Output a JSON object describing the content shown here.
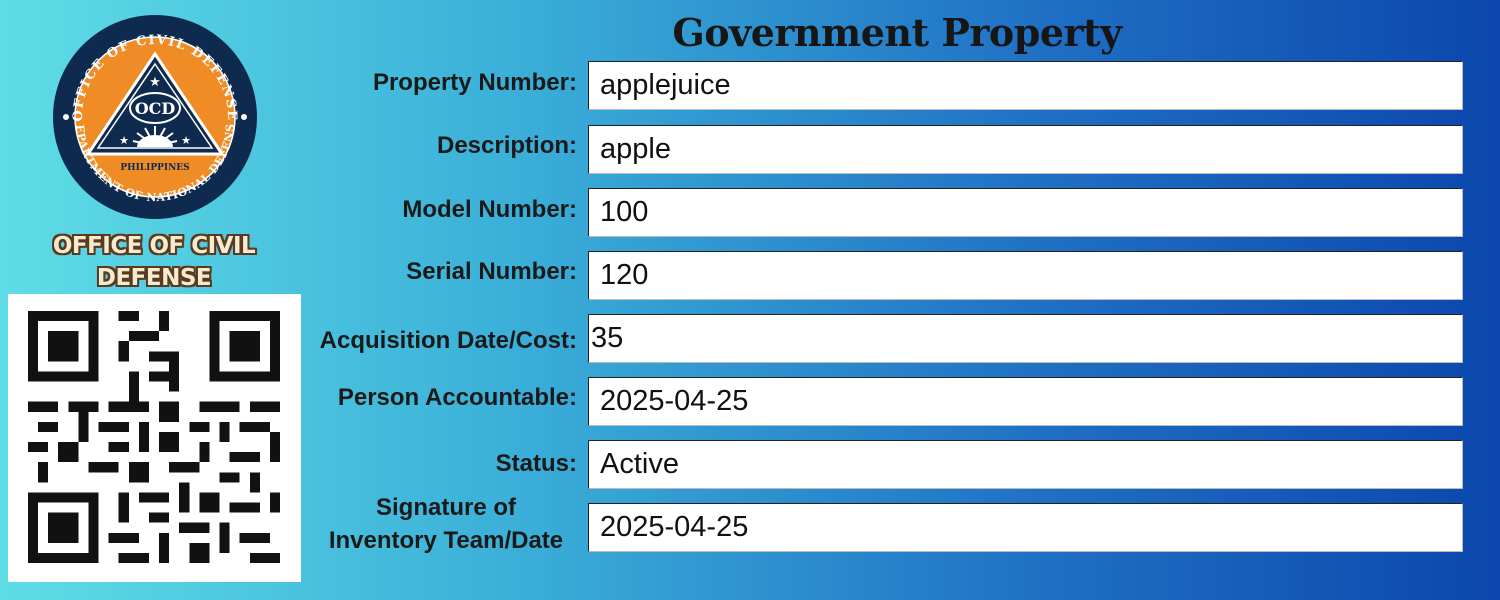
{
  "header": {
    "title": "Government Property"
  },
  "organization": {
    "name_line1": "OFFICE OF CIVIL",
    "name_line2": "DEFENSE",
    "seal": {
      "top_arc": "OFFICE OF CIVIL DEFENSE",
      "bottom_arc": "DEPARTMENT OF NATIONAL DEFENSE",
      "abbreviation": "OCD",
      "country": "PHILIPPINES"
    }
  },
  "colors": {
    "seal_orange": "#f08c25",
    "seal_navy": "#0e2a4e",
    "bg_left": "#5fdde6",
    "bg_right": "#0b47ad"
  },
  "qr": {
    "icon": "qr-code"
  },
  "form": {
    "fields": [
      {
        "label": "Property Number:",
        "value": "applejuice"
      },
      {
        "label": "Description:",
        "value": "apple"
      },
      {
        "label": "Model Number:",
        "value": "100"
      },
      {
        "label": "Serial Number:",
        "value": "120"
      },
      {
        "label": "Acquisition Date/Cost:",
        "value": "35"
      },
      {
        "label": "Person Accountable:",
        "value": "2025-04-25"
      },
      {
        "label": "Status:",
        "value": "Active"
      },
      {
        "label_line1": "Signature of",
        "label_line2": "Inventory Team/Date",
        "value": "2025-04-25"
      }
    ]
  }
}
